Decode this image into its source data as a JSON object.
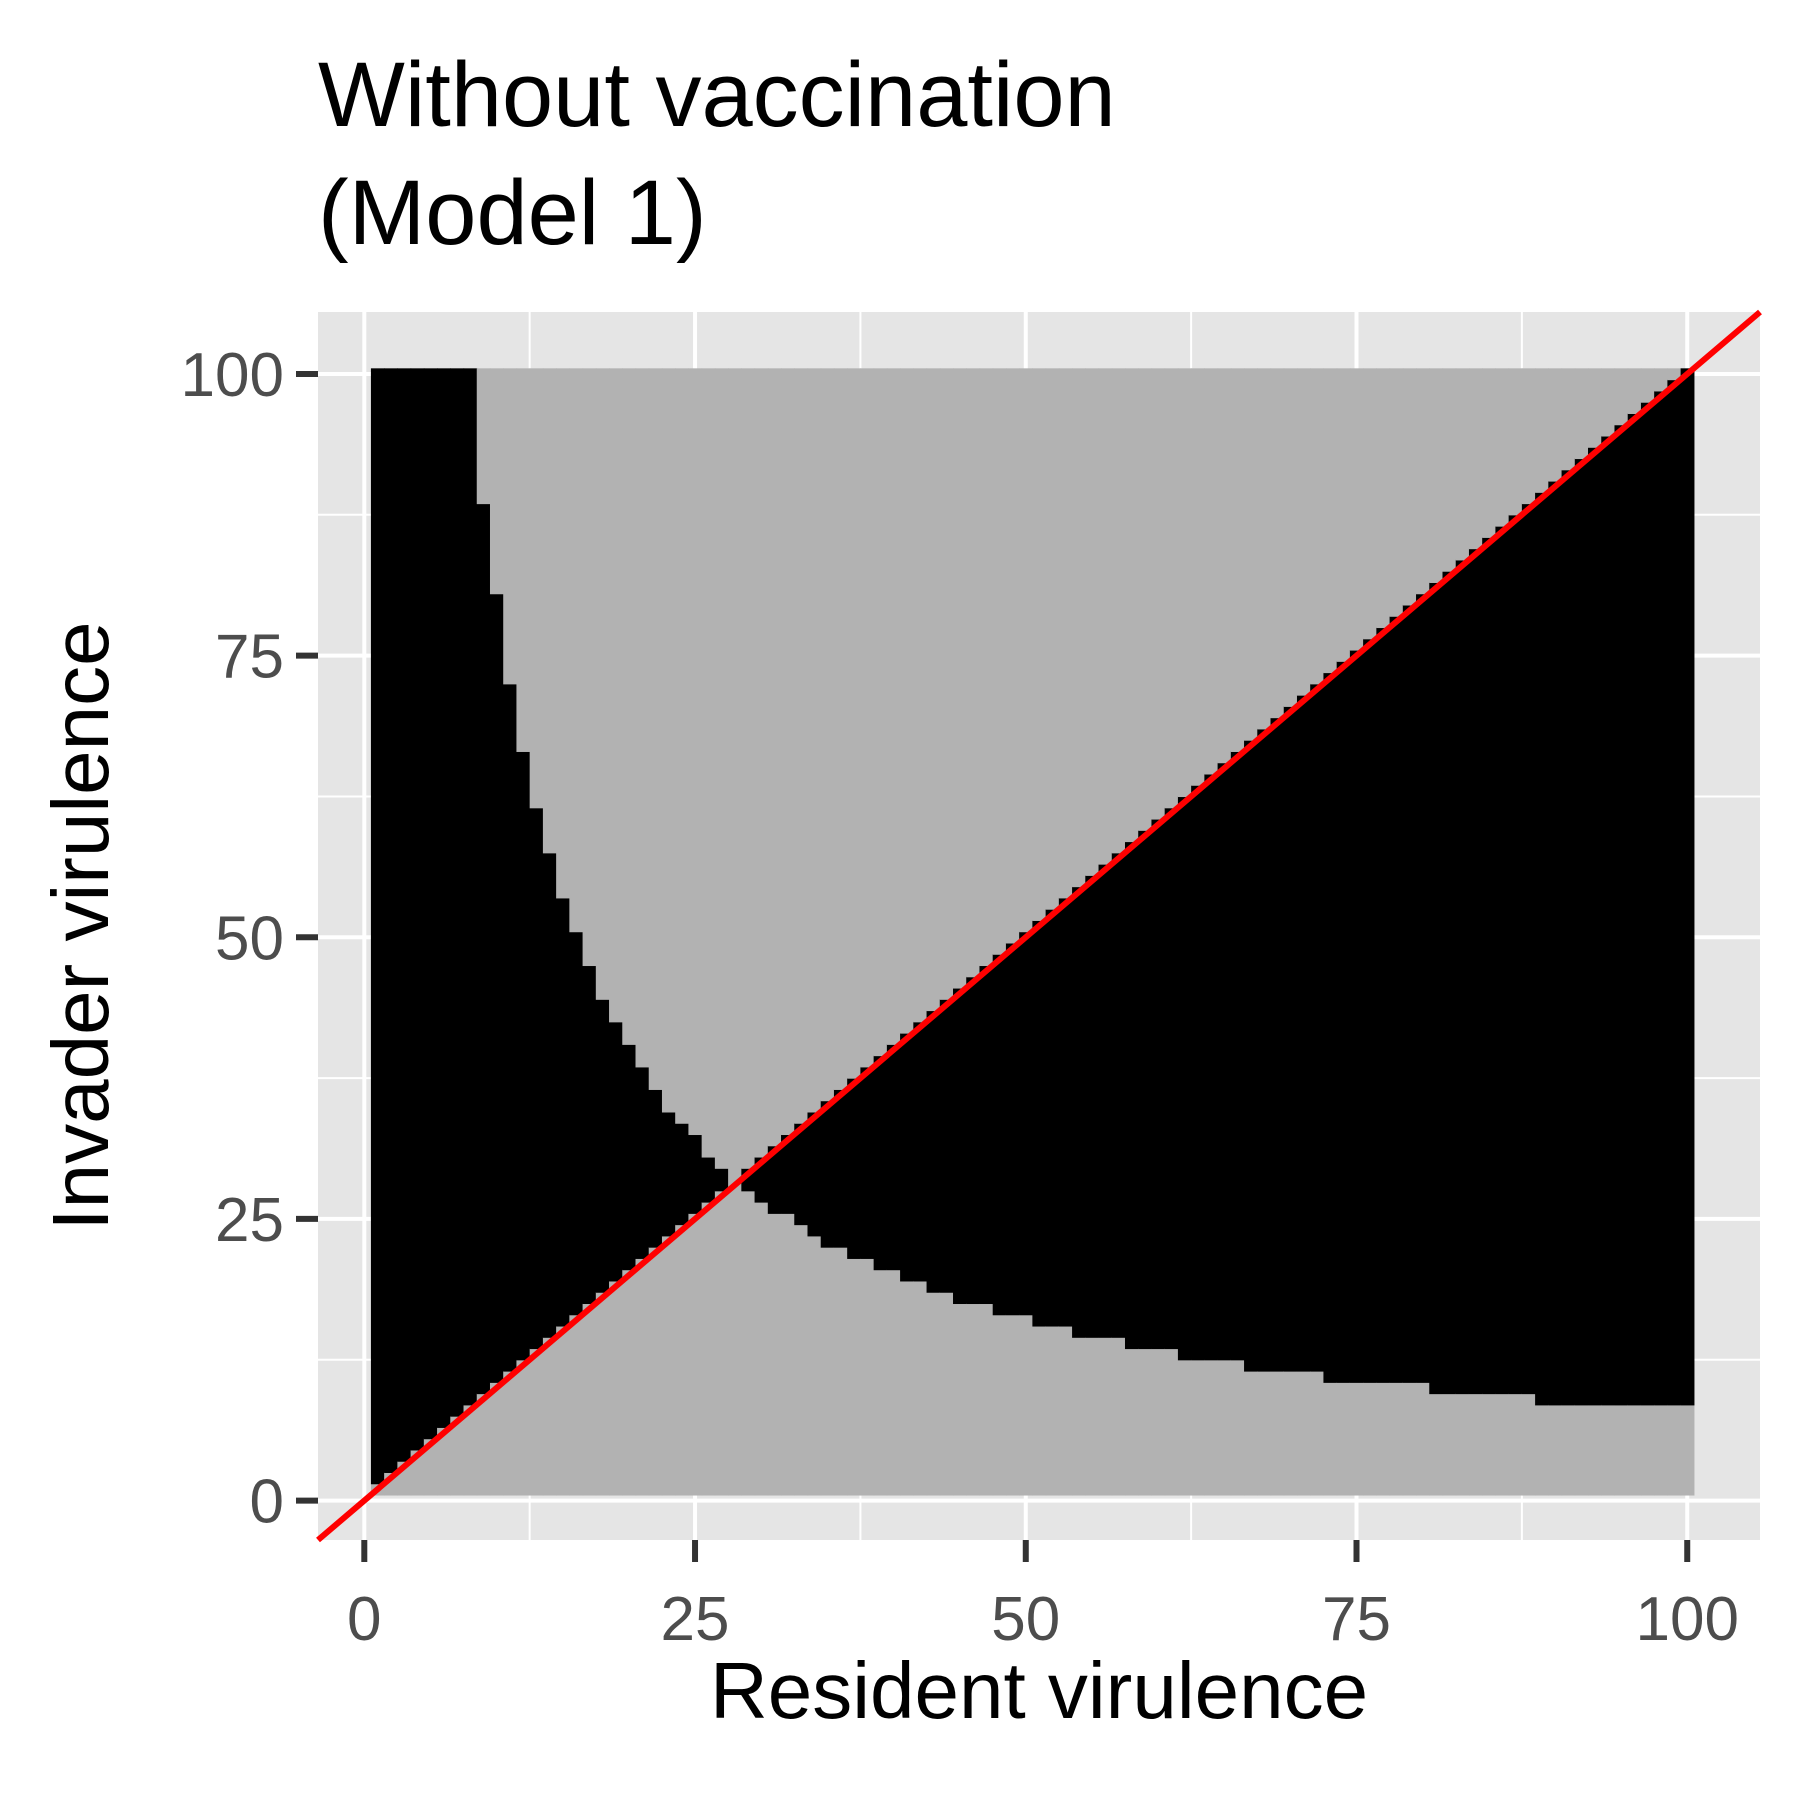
{
  "chart_data": {
    "type": "heatmap",
    "title": "Without vaccination\n(Model 1)",
    "xlabel": "Resident virulence",
    "ylabel": "Invader virulence",
    "xlim": [
      -3.5,
      105.5
    ],
    "ylim": [
      -3.5,
      105.5
    ],
    "x_ticks": [
      0,
      25,
      50,
      75,
      100
    ],
    "y_ticks": [
      0,
      25,
      50,
      75,
      100
    ],
    "x_tick_labels": [
      "0",
      "25",
      "50",
      "75",
      "100"
    ],
    "y_tick_labels": [
      "0",
      "25",
      "50",
      "75",
      "100"
    ],
    "grid": true,
    "legend": "none",
    "grid_cells": {
      "x_range": [
        1,
        100
      ],
      "y_range": [
        1,
        100
      ],
      "step": 1
    },
    "fill_rule": "black where invader virulence > resident virulence XOR resident virulence × invader virulence > about 800; grey elsewhere",
    "reference_line": {
      "label": "y = x",
      "slope": 1,
      "intercept": 0
    },
    "colors": {
      "panel_background": "#e5e5e5",
      "grid": "#ffffff",
      "region_black": "#000000",
      "region_grey": "#b2b2b2",
      "reference_line": "#ff0000",
      "text": "#000000",
      "tick_label": "#4d4d4d",
      "tick_mark": "#333333"
    }
  }
}
